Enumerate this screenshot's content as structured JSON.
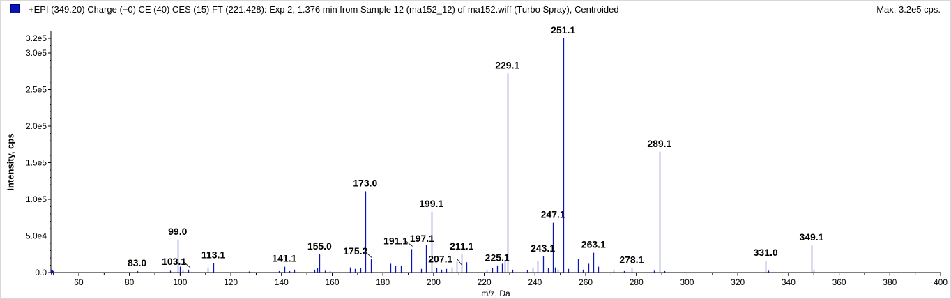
{
  "window": {
    "title": "+EPI (349.20) Charge (+0) CE (40) CES (15) FT (221.428): Exp 2, 1.376 min from Sample 12 (ma152_12) of ma152.wiff (Turbo Spray), Centroided",
    "max_label": "Max. 3.2e5 cps."
  },
  "colors": {
    "series": "#0a14b4",
    "axis": "#000000",
    "background": "#ffffff"
  },
  "chart_data": {
    "type": "bar",
    "title": "+EPI (349.20) Charge (+0) CE (40) CES (15) FT (221.428): Exp 2, 1.376 min from Sample 12 (ma152_12) of ma152.wiff (Turbo Spray), Centroided",
    "xlabel": "m/z, Da",
    "ylabel": "Intensity, cps",
    "xlim": [
      49,
      400
    ],
    "ylim": [
      0,
      320000
    ],
    "grid": false,
    "legend": "top-left",
    "x_ticks": [
      60,
      80,
      100,
      120,
      140,
      160,
      180,
      200,
      220,
      240,
      260,
      280,
      300,
      320,
      340,
      360,
      380,
      400
    ],
    "y_ticks": [
      {
        "value": 0,
        "label": "0.0"
      },
      {
        "value": 50000,
        "label": "5.0e4"
      },
      {
        "value": 100000,
        "label": "1.0e5"
      },
      {
        "value": 150000,
        "label": "1.5e5"
      },
      {
        "value": 200000,
        "label": "2.0e5"
      },
      {
        "value": 250000,
        "label": "2.5e5"
      },
      {
        "value": 300000,
        "label": "3.0e5"
      },
      {
        "value": 320000,
        "label": "3.2e5"
      }
    ],
    "peaks": [
      {
        "mz": 83.0,
        "intensity": 2000
      },
      {
        "mz": 96.0,
        "intensity": 2500
      },
      {
        "mz": 99.0,
        "intensity": 45000
      },
      {
        "mz": 100.0,
        "intensity": 8000
      },
      {
        "mz": 101.0,
        "intensity": 3000
      },
      {
        "mz": 103.1,
        "intensity": 4000
      },
      {
        "mz": 111.0,
        "intensity": 7000
      },
      {
        "mz": 113.1,
        "intensity": 13000
      },
      {
        "mz": 127.0,
        "intensity": 1500
      },
      {
        "mz": 139.0,
        "intensity": 2000
      },
      {
        "mz": 141.1,
        "intensity": 8000
      },
      {
        "mz": 143.0,
        "intensity": 2000
      },
      {
        "mz": 145.0,
        "intensity": 4000
      },
      {
        "mz": 153.0,
        "intensity": 4000
      },
      {
        "mz": 154.0,
        "intensity": 6000
      },
      {
        "mz": 155.0,
        "intensity": 25000
      },
      {
        "mz": 157.0,
        "intensity": 2500
      },
      {
        "mz": 159.0,
        "intensity": 2000
      },
      {
        "mz": 167.0,
        "intensity": 7000
      },
      {
        "mz": 169.0,
        "intensity": 5000
      },
      {
        "mz": 171.0,
        "intensity": 6000
      },
      {
        "mz": 173.0,
        "intensity": 111000
      },
      {
        "mz": 175.2,
        "intensity": 18000
      },
      {
        "mz": 183.0,
        "intensity": 12000
      },
      {
        "mz": 185.0,
        "intensity": 9000
      },
      {
        "mz": 187.0,
        "intensity": 9000
      },
      {
        "mz": 191.1,
        "intensity": 32000
      },
      {
        "mz": 195.0,
        "intensity": 5000
      },
      {
        "mz": 197.1,
        "intensity": 38000
      },
      {
        "mz": 199.1,
        "intensity": 83000
      },
      {
        "mz": 201.0,
        "intensity": 6000
      },
      {
        "mz": 203.0,
        "intensity": 4000
      },
      {
        "mz": 205.0,
        "intensity": 5000
      },
      {
        "mz": 207.1,
        "intensity": 7000
      },
      {
        "mz": 209.0,
        "intensity": 15000
      },
      {
        "mz": 211.1,
        "intensity": 25000
      },
      {
        "mz": 213.0,
        "intensity": 14000
      },
      {
        "mz": 221.0,
        "intensity": 4000
      },
      {
        "mz": 223.0,
        "intensity": 6000
      },
      {
        "mz": 225.1,
        "intensity": 9000
      },
      {
        "mz": 227.0,
        "intensity": 12000
      },
      {
        "mz": 228.0,
        "intensity": 16000
      },
      {
        "mz": 229.1,
        "intensity": 272000
      },
      {
        "mz": 231.0,
        "intensity": 4000
      },
      {
        "mz": 237.0,
        "intensity": 3000
      },
      {
        "mz": 239.0,
        "intensity": 7000
      },
      {
        "mz": 241.0,
        "intensity": 16000
      },
      {
        "mz": 243.1,
        "intensity": 22000
      },
      {
        "mz": 245.0,
        "intensity": 6000
      },
      {
        "mz": 247.1,
        "intensity": 68000
      },
      {
        "mz": 248.0,
        "intensity": 7000
      },
      {
        "mz": 249.0,
        "intensity": 4000
      },
      {
        "mz": 251.1,
        "intensity": 320000
      },
      {
        "mz": 253.0,
        "intensity": 5000
      },
      {
        "mz": 257.0,
        "intensity": 19000
      },
      {
        "mz": 259.0,
        "intensity": 4000
      },
      {
        "mz": 261.0,
        "intensity": 12000
      },
      {
        "mz": 263.1,
        "intensity": 27000
      },
      {
        "mz": 265.0,
        "intensity": 8000
      },
      {
        "mz": 271.0,
        "intensity": 4000
      },
      {
        "mz": 275.0,
        "intensity": 2000
      },
      {
        "mz": 278.1,
        "intensity": 6000
      },
      {
        "mz": 287.0,
        "intensity": 2500
      },
      {
        "mz": 289.1,
        "intensity": 165000
      },
      {
        "mz": 291.0,
        "intensity": 2000
      },
      {
        "mz": 331.0,
        "intensity": 16000
      },
      {
        "mz": 332.0,
        "intensity": 2500
      },
      {
        "mz": 349.1,
        "intensity": 37000
      },
      {
        "mz": 350.0,
        "intensity": 4000
      }
    ],
    "annotations": [
      {
        "text": "83.0",
        "mz": 83.0
      },
      {
        "text": "99.0",
        "mz": 99.0
      },
      {
        "text": "103.1",
        "mz": 103.1
      },
      {
        "text": "113.1",
        "mz": 113.1
      },
      {
        "text": "141.1",
        "mz": 141.1
      },
      {
        "text": "155.0",
        "mz": 155.0
      },
      {
        "text": "173.0",
        "mz": 173.0
      },
      {
        "text": "175.2",
        "mz": 175.2
      },
      {
        "text": "191.1",
        "mz": 191.1
      },
      {
        "text": "197.1",
        "mz": 197.1
      },
      {
        "text": "199.1",
        "mz": 199.1
      },
      {
        "text": "207.1",
        "mz": 207.1
      },
      {
        "text": "211.1",
        "mz": 211.1
      },
      {
        "text": "225.1",
        "mz": 225.1
      },
      {
        "text": "229.1",
        "mz": 229.1
      },
      {
        "text": "243.1",
        "mz": 243.1
      },
      {
        "text": "247.1",
        "mz": 247.1
      },
      {
        "text": "251.1",
        "mz": 251.1
      },
      {
        "text": "263.1",
        "mz": 263.1
      },
      {
        "text": "278.1",
        "mz": 278.1
      },
      {
        "text": "289.1",
        "mz": 289.1
      },
      {
        "text": "331.0",
        "mz": 331.0
      },
      {
        "text": "349.1",
        "mz": 349.1
      }
    ]
  }
}
